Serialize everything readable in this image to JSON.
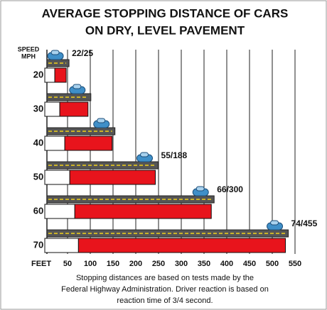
{
  "chart_data": {
    "type": "stacked_bar",
    "title_lines": [
      "AVERAGE STOPPING DISTANCE OF CARS",
      "ON DRY, LEVEL PAVEMENT"
    ],
    "y_axis_label_lines": [
      "SPEED",
      "MPH"
    ],
    "x_axis_label": "FEET",
    "categories": [
      20,
      30,
      40,
      50,
      60,
      70
    ],
    "series": [
      {
        "color": "#ffffff",
        "values": [
          22,
          33,
          44,
          55,
          66,
          74
        ]
      },
      {
        "color": "#e8141c",
        "values": [
          25,
          62,
          104,
          188,
          300,
          455
        ]
      }
    ],
    "value_labels": [
      "22/25",
      null,
      null,
      "55/188",
      "66/300",
      "74/455"
    ],
    "xlim": [
      0,
      560
    ],
    "xticks": [
      50,
      100,
      150,
      200,
      250,
      300,
      350,
      400,
      450,
      500,
      550
    ],
    "grid": true,
    "footnote_lines": [
      "Stopping distances are based on tests made by the",
      "Federal Highway Administration. Driver reaction is based on",
      "reaction time of 3/4 second."
    ]
  }
}
